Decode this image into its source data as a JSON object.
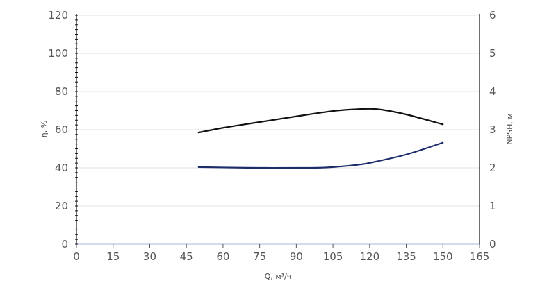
{
  "chart_data": {
    "type": "line",
    "title": "",
    "xlabel": "Q, м³/ч",
    "ylabel_left": "η, %",
    "ylabel_right": "NPSH, м",
    "xlim": [
      0,
      165
    ],
    "ylim_left": [
      0,
      120
    ],
    "ylim_right": [
      0,
      6
    ],
    "x_ticks": [
      "0",
      "15",
      "30",
      "45",
      "60",
      "75",
      "90",
      "105",
      "120",
      "135",
      "150",
      "165"
    ],
    "y_left_ticks": [
      "0",
      "20",
      "40",
      "60",
      "80",
      "100",
      "120"
    ],
    "y_right_ticks": [
      "0",
      "1",
      "2",
      "3",
      "4",
      "5",
      "6"
    ],
    "grid": true,
    "legend": "none",
    "series": [
      {
        "axis": "left",
        "color": "#111111",
        "x": [
          50,
          60,
          75,
          90,
          105,
          115,
          120,
          125,
          135,
          150
        ],
        "y": [
          58.5,
          61,
          64,
          67,
          69.8,
          70.8,
          71,
          70.5,
          68,
          62.8
        ]
      },
      {
        "axis": "right",
        "color": "#1d2d6b",
        "x": [
          50,
          60,
          75,
          90,
          100,
          105,
          115,
          120,
          135,
          150
        ],
        "y": [
          2.02,
          2.01,
          2.0,
          2.0,
          2.005,
          2.02,
          2.08,
          2.13,
          2.35,
          2.66
        ]
      }
    ]
  }
}
